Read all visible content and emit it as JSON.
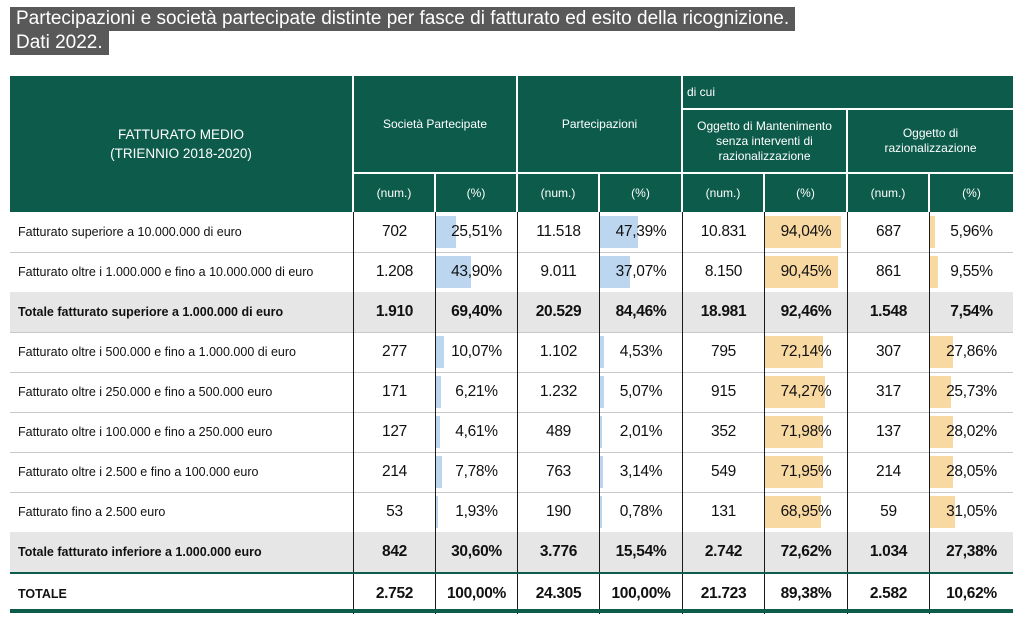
{
  "title": {
    "line1": "Partecipazioni e società partecipate distinte per fasce di fatturato ed esito della ricognizione.",
    "line2": "Dati 2022."
  },
  "header": {
    "fatturato": "FATTURATO MEDIO\n(TRIENNIO 2018-2020)",
    "societa": "Società Partecipate",
    "partecipazioni": "Partecipazioni",
    "di_cui": "di cui",
    "mantenimento": "Oggetto di Mantenimento senza interventi di razionalizzazione",
    "razionalizzazione": "Oggetto di razionalizzazione",
    "num": "(num.)",
    "pct": "(%)"
  },
  "colors": {
    "header_bg": "#0d5c4b",
    "bar_blue": "#bcd6ef",
    "bar_orange": "#f8d9a2",
    "total_bg": "#e6e6e6"
  },
  "rows": [
    {
      "label": "Fatturato superiore a 10.000.000 di euro",
      "soc_num": "702",
      "soc_pct": "25,51%",
      "part_num": "11.518",
      "part_pct": "47,39%",
      "mant_num": "10.831",
      "mant_pct": "94,04%",
      "raz_num": "687",
      "raz_pct": "5,96%",
      "type": "normal",
      "soc_frac": 0.2551,
      "part_frac": 0.4739,
      "mant_frac": 0.9404,
      "raz_frac": 0.0596
    },
    {
      "label": "Fatturato oltre i 1.000.000 e fino a 10.000.000 di euro",
      "soc_num": "1.208",
      "soc_pct": "43,90%",
      "part_num": "9.011",
      "part_pct": "37,07%",
      "mant_num": "8.150",
      "mant_pct": "90,45%",
      "raz_num": "861",
      "raz_pct": "9,55%",
      "type": "normal",
      "soc_frac": 0.439,
      "part_frac": 0.3707,
      "mant_frac": 0.9045,
      "raz_frac": 0.0955
    },
    {
      "label": "Totale fatturato superiore a 1.000.000 di euro",
      "soc_num": "1.910",
      "soc_pct": "69,40%",
      "part_num": "20.529",
      "part_pct": "84,46%",
      "mant_num": "18.981",
      "mant_pct": "92,46%",
      "raz_num": "1.548",
      "raz_pct": "7,54%",
      "type": "total"
    },
    {
      "label": "Fatturato oltre i 500.000 e fino a 1.000.000 di euro",
      "soc_num": "277",
      "soc_pct": "10,07%",
      "part_num": "1.102",
      "part_pct": "4,53%",
      "mant_num": "795",
      "mant_pct": "72,14%",
      "raz_num": "307",
      "raz_pct": "27,86%",
      "type": "normal",
      "soc_frac": 0.1007,
      "part_frac": 0.0453,
      "mant_frac": 0.7214,
      "raz_frac": 0.2786
    },
    {
      "label": "Fatturato oltre i 250.000 e fino a 500.000 euro",
      "soc_num": "171",
      "soc_pct": "6,21%",
      "part_num": "1.232",
      "part_pct": "5,07%",
      "mant_num": "915",
      "mant_pct": "74,27%",
      "raz_num": "317",
      "raz_pct": "25,73%",
      "type": "normal",
      "soc_frac": 0.0621,
      "part_frac": 0.0507,
      "mant_frac": 0.7427,
      "raz_frac": 0.2573
    },
    {
      "label": "Fatturato oltre i 100.000 e fino a 250.000 euro",
      "soc_num": "127",
      "soc_pct": "4,61%",
      "part_num": "489",
      "part_pct": "2,01%",
      "mant_num": "352",
      "mant_pct": "71,98%",
      "raz_num": "137",
      "raz_pct": "28,02%",
      "type": "normal",
      "soc_frac": 0.0461,
      "part_frac": 0.0201,
      "mant_frac": 0.7198,
      "raz_frac": 0.2802
    },
    {
      "label": "Fatturato oltre i 2.500 e fino a 100.000 euro",
      "soc_num": "214",
      "soc_pct": "7,78%",
      "part_num": "763",
      "part_pct": "3,14%",
      "mant_num": "549",
      "mant_pct": "71,95%",
      "raz_num": "214",
      "raz_pct": "28,05%",
      "type": "normal",
      "soc_frac": 0.0778,
      "part_frac": 0.0314,
      "mant_frac": 0.7195,
      "raz_frac": 0.2805
    },
    {
      "label": "Fatturato fino a 2.500 euro",
      "soc_num": "53",
      "soc_pct": "1,93%",
      "part_num": "190",
      "part_pct": "0,78%",
      "mant_num": "131",
      "mant_pct": "68,95%",
      "raz_num": "59",
      "raz_pct": "31,05%",
      "type": "normal",
      "soc_frac": 0.0193,
      "part_frac": 0.0078,
      "mant_frac": 0.6895,
      "raz_frac": 0.3105
    },
    {
      "label": "Totale fatturato inferiore a 1.000.000 euro",
      "soc_num": "842",
      "soc_pct": "30,60%",
      "part_num": "3.776",
      "part_pct": "15,54%",
      "mant_num": "2.742",
      "mant_pct": "72,62%",
      "raz_num": "1.034",
      "raz_pct": "27,38%",
      "type": "total"
    },
    {
      "label": "TOTALE",
      "soc_num": "2.752",
      "soc_pct": "100,00%",
      "part_num": "24.305",
      "part_pct": "100,00%",
      "mant_num": "21.723",
      "mant_pct": "89,38%",
      "raz_num": "2.582",
      "raz_pct": "10,62%",
      "type": "final"
    }
  ]
}
